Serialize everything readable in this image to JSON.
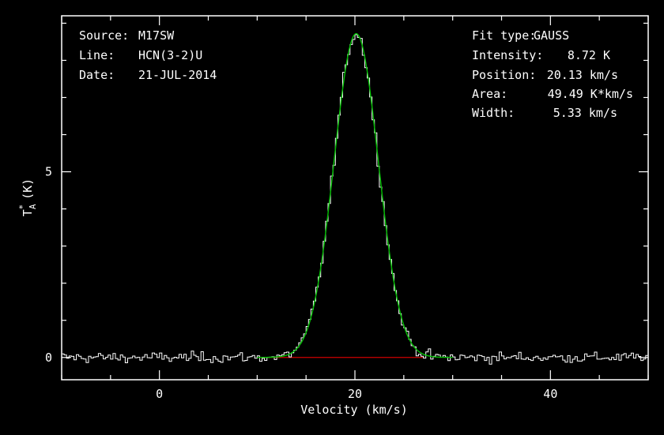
{
  "colors": {
    "background": "#000000",
    "axes": "#ffffff",
    "spectrum": "#ffffff",
    "fit": "#00c000",
    "baseline": "#d00000"
  },
  "info_left": {
    "source_label": "Source:",
    "source_value": "M17SW",
    "line_label": "Line:",
    "line_value": "HCN(3-2)U",
    "date_label": "Date:",
    "date_value": "21-JUL-2014"
  },
  "info_right": {
    "fit_label": "Fit type:",
    "fit_value": "GAUSS",
    "intensity_label": "Intensity:",
    "intensity_value": "8.72 K",
    "position_label": "Position:",
    "position_value": "20.13 km/s",
    "area_label": "Area:",
    "area_value": "49.49 K*km/s",
    "width_label": "Width:",
    "width_value": "5.33 km/s"
  },
  "chart_data": {
    "type": "line",
    "xlabel": "Velocity (km/s)",
    "ylabel": "T",
    "ylabel_sub": "A",
    "ylabel_sup": "*",
    "ylabel_unit": "(K)",
    "xlim": [
      -10,
      50
    ],
    "ylim": [
      -0.6,
      9.2
    ],
    "x_ticks": [
      0,
      20,
      40
    ],
    "y_ticks": [
      0,
      5
    ],
    "x_tick_labels": [
      "0",
      "20",
      "40"
    ],
    "y_tick_labels": [
      "0",
      "5"
    ],
    "series": [
      {
        "style": "histogram",
        "x_start": -10,
        "x_end": 50,
        "channel_width": 0.25,
        "noise_rms": 0.1,
        "values_note_peak": 8.72
      },
      {
        "style": "gaussian-fit",
        "amplitude": 8.72,
        "center": 20.13,
        "fwhm": 5.33
      },
      {
        "style": "baseline",
        "y": 0,
        "x_from": 10,
        "x_to": 27
      }
    ]
  }
}
